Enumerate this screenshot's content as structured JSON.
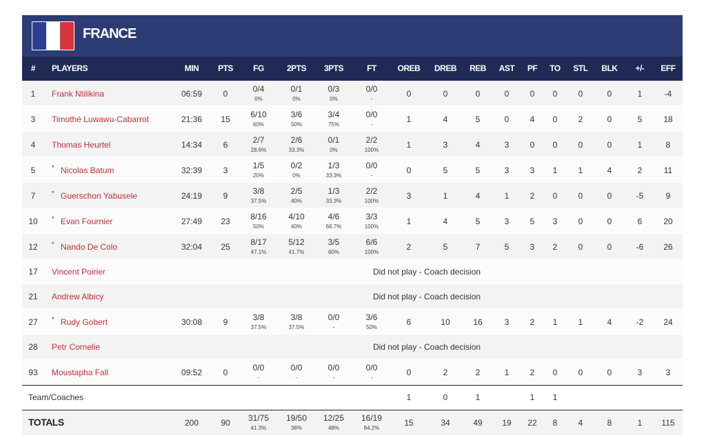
{
  "header": {
    "title": "FRANCE"
  },
  "table": {
    "columns": [
      "#",
      "PLAYERS",
      "MIN",
      "PTS",
      "FG",
      "2PTS",
      "3PTS",
      "FT",
      "OREB",
      "DREB",
      "REB",
      "AST",
      "PF",
      "TO",
      "STL",
      "BLK",
      "+/-",
      "EFF"
    ],
    "rows": [
      {
        "no": 1,
        "name": "Frank Ntilikina",
        "cells": [
          "06:59",
          0,
          {
            "made": "0/4",
            "pct": "0%"
          },
          {
            "made": "0/1",
            "pct": "0%"
          },
          {
            "made": "0/3",
            "pct": "0%"
          },
          {
            "made": "0/0",
            "pct": "-"
          },
          0,
          0,
          0,
          0,
          0,
          0,
          0,
          0,
          1,
          -4
        ]
      },
      {
        "no": 3,
        "name": "Timothé Luwawu-Cabarrot",
        "cells": [
          "21:36",
          15,
          {
            "made": "6/10",
            "pct": "60%"
          },
          {
            "made": "3/6",
            "pct": "50%"
          },
          {
            "made": "3/4",
            "pct": "75%"
          },
          {
            "made": "0/0",
            "pct": "-"
          },
          1,
          4,
          5,
          0,
          4,
          0,
          2,
          0,
          5,
          18
        ]
      },
      {
        "no": 4,
        "name": "Thomas Heurtel",
        "cells": [
          "14:34",
          6,
          {
            "made": "2/7",
            "pct": "28.6%"
          },
          {
            "made": "2/6",
            "pct": "33.3%"
          },
          {
            "made": "0/1",
            "pct": "0%"
          },
          {
            "made": "2/2",
            "pct": "100%"
          },
          1,
          3,
          4,
          3,
          0,
          0,
          0,
          0,
          1,
          8
        ]
      },
      {
        "no": 5,
        "starter": "*",
        "name": "Nicolas Batum",
        "cells": [
          "32:39",
          3,
          {
            "made": "1/5",
            "pct": "20%"
          },
          {
            "made": "0/2",
            "pct": "0%"
          },
          {
            "made": "1/3",
            "pct": "33.3%"
          },
          {
            "made": "0/0",
            "pct": "-"
          },
          0,
          5,
          5,
          3,
          3,
          1,
          1,
          4,
          2,
          11
        ]
      },
      {
        "no": 7,
        "starter": "*",
        "name": "Guerschon Yabusele",
        "cells": [
          "24:19",
          9,
          {
            "made": "3/8",
            "pct": "37.5%"
          },
          {
            "made": "2/5",
            "pct": "40%"
          },
          {
            "made": "1/3",
            "pct": "33.3%"
          },
          {
            "made": "2/2",
            "pct": "100%"
          },
          3,
          1,
          4,
          1,
          2,
          0,
          0,
          0,
          -5,
          9
        ]
      },
      {
        "no": 10,
        "starter": "*",
        "name": "Evan Fournier",
        "cells": [
          "27:49",
          23,
          {
            "made": "8/16",
            "pct": "50%"
          },
          {
            "made": "4/10",
            "pct": "40%"
          },
          {
            "made": "4/6",
            "pct": "66.7%"
          },
          {
            "made": "3/3",
            "pct": "100%"
          },
          1,
          4,
          5,
          3,
          5,
          3,
          0,
          0,
          6,
          20
        ]
      },
      {
        "no": 12,
        "starter": "*",
        "name": "Nando De Colo",
        "cells": [
          "32:04",
          25,
          {
            "made": "8/17",
            "pct": "47.1%"
          },
          {
            "made": "5/12",
            "pct": "41.7%"
          },
          {
            "made": "3/5",
            "pct": "60%"
          },
          {
            "made": "6/6",
            "pct": "100%"
          },
          2,
          5,
          7,
          5,
          3,
          2,
          0,
          0,
          -6,
          26
        ]
      },
      {
        "no": 17,
        "name": "Vincent Poirier",
        "dnp": "Did not play - Coach decision"
      },
      {
        "no": 21,
        "name": "Andrew Albicy",
        "dnp": "Did not play - Coach decision"
      },
      {
        "no": 27,
        "starter": "*",
        "name": "Rudy Gobert",
        "cells": [
          "30:08",
          9,
          {
            "made": "3/8",
            "pct": "37.5%"
          },
          {
            "made": "3/8",
            "pct": "37.5%"
          },
          {
            "made": "0/0",
            "pct": "-"
          },
          {
            "made": "3/6",
            "pct": "50%"
          },
          6,
          10,
          16,
          3,
          2,
          1,
          1,
          4,
          -2,
          24
        ]
      },
      {
        "no": 28,
        "name": "Petr Cornelie",
        "dnp": "Did not play - Coach decision"
      },
      {
        "no": 93,
        "name": "Moustapha Fall",
        "cells": [
          "09:52",
          0,
          {
            "made": "0/0",
            "pct": "-"
          },
          {
            "made": "0/0",
            "pct": "-"
          },
          {
            "made": "0/0",
            "pct": "-"
          },
          {
            "made": "0/0",
            "pct": "-"
          },
          0,
          2,
          2,
          1,
          2,
          0,
          0,
          0,
          3,
          3
        ]
      }
    ],
    "team": {
      "label": "Team/Coaches",
      "cells": [
        null,
        null,
        null,
        null,
        null,
        null,
        1,
        0,
        1,
        null,
        1,
        1,
        null,
        null,
        null,
        null
      ]
    },
    "totals": {
      "label": "TOTALS",
      "cells": [
        200,
        90,
        {
          "made": "31/75",
          "pct": "41.3%"
        },
        {
          "made": "19/50",
          "pct": "38%"
        },
        {
          "made": "12/25",
          "pct": "48%"
        },
        {
          "made": "16/19",
          "pct": "84.2%"
        },
        15,
        34,
        49,
        19,
        22,
        8,
        4,
        8,
        1,
        115
      ]
    }
  }
}
